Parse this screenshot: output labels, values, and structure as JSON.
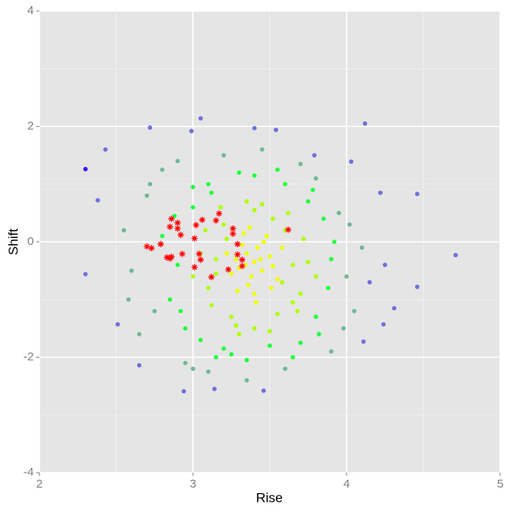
{
  "chart_data": {
    "type": "scatter",
    "x_label": "Rise",
    "y_label": "Shift",
    "xlim": [
      2,
      5
    ],
    "ylim": [
      -4,
      4
    ],
    "xticks": [
      2,
      3,
      4,
      5
    ],
    "yticks": [
      -4,
      -2,
      0,
      2,
      4
    ],
    "grid": true,
    "series": [
      {
        "color": "#eeff00",
        "marker": "dot",
        "x": [
          3.4,
          3.35,
          3.45,
          3.3,
          3.5,
          3.38,
          3.42,
          3.28,
          3.52,
          3.36,
          3.46,
          3.32,
          3.25,
          3.55,
          3.4,
          3.33,
          3.48,
          3.22,
          3.58,
          3.44,
          3.37,
          3.29,
          3.51,
          3.41,
          3.34
        ],
        "values": [
          -0.35,
          -0.2,
          -0.5,
          -0.45,
          -0.25,
          -0.6,
          -0.1,
          -0.3,
          -0.42,
          -0.75,
          0,
          -0.05,
          -0.55,
          -0.65,
          -0.9,
          0.15,
          0.1,
          -0.2,
          -0.1,
          -0.3,
          0.25,
          -0.85,
          -0.8,
          -1.05,
          -0.4
        ]
      },
      {
        "color": "#b0ff00",
        "marker": "dot",
        "x": [
          3.15,
          3.65,
          3.2,
          3.6,
          3.1,
          3.7,
          3.25,
          3.55,
          3.4,
          3.4,
          3.05,
          3.75,
          3.18,
          3.62,
          3.3,
          3.5,
          3.12,
          3.68,
          3.22,
          3.58,
          3.08,
          3.72,
          3.35,
          3.45,
          3.0,
          3.8,
          3.28,
          3.52,
          3.15,
          3.65
        ],
        "values": [
          -0.3,
          -0.4,
          0.3,
          0.2,
          -0.8,
          -0.9,
          -1.3,
          -1.25,
          0.55,
          -1.5,
          -0.2,
          -0.35,
          0.6,
          0.5,
          -1.6,
          -1.55,
          -1.1,
          -1.2,
          0.05,
          -0.7,
          0.2,
          0.05,
          0.7,
          0.65,
          -0.6,
          -0.6,
          -1.45,
          0.4,
          -0.55,
          -1.05
        ]
      },
      {
        "color": "#20ff40",
        "marker": "dot",
        "x": [
          2.9,
          3.9,
          3.0,
          3.85,
          2.85,
          3.8,
          2.95,
          3.1,
          3.6,
          3.2,
          3.5,
          3.05,
          3.75,
          2.8,
          3.88,
          3.3,
          3.4,
          3.15,
          3.7,
          2.88,
          3.92,
          3.25,
          3.55,
          3.0,
          3.82,
          2.92,
          3.65,
          3.35,
          3.12,
          3.78
        ],
        "values": [
          -0.4,
          -0.3,
          0.6,
          0.4,
          -1.0,
          -1.3,
          -1.5,
          1.0,
          1.0,
          -1.85,
          -1.8,
          -1.7,
          0.7,
          0.1,
          -0.8,
          1.2,
          1.15,
          -2.0,
          -1.75,
          0.45,
          0,
          -1.95,
          1.25,
          0.95,
          -1.6,
          -1.2,
          -2.0,
          -2.05,
          0.85,
          0.9
        ]
      },
      {
        "color": "#70b898",
        "marker": "dot",
        "x": [
          2.6,
          4.0,
          2.7,
          3.95,
          2.55,
          4.05,
          2.75,
          3.7,
          2.8,
          3.2,
          3.6,
          3.0,
          3.9,
          2.65,
          4.1,
          2.9,
          3.45,
          2.58,
          3.98,
          3.1,
          3.8,
          2.72,
          4.02,
          3.35,
          2.95
        ],
        "values": [
          -0.5,
          -0.6,
          0.8,
          0.5,
          0.2,
          -1.2,
          -1.2,
          1.35,
          1.25,
          1.5,
          -2.2,
          -2.2,
          -1.9,
          -1.6,
          -0.1,
          1.4,
          1.6,
          -1.0,
          -1.5,
          -2.25,
          1.1,
          1.0,
          0.3,
          -2.4,
          -2.1
        ]
      },
      {
        "color": "#7070d8",
        "marker": "dot",
        "x": [
          2.43,
          2.3,
          2.38,
          2.72,
          3.05,
          4.12,
          4.71,
          4.46,
          4.46,
          2.94,
          2.65,
          2.51,
          4.11,
          4.31,
          3.46,
          3.14,
          4.03,
          3.79,
          3.54,
          3.4,
          2.99,
          4.24,
          4.22,
          4.25,
          4.15
        ],
        "values": [
          1.6,
          -0.56,
          0.72,
          1.98,
          2.14,
          2.05,
          -0.23,
          0.83,
          -0.78,
          -2.59,
          -2.14,
          -1.43,
          -1.73,
          -1.15,
          -2.58,
          -2.55,
          1.39,
          1.5,
          1.94,
          1.97,
          1.92,
          -1.43,
          0.85,
          -0.4,
          -0.7
        ]
      },
      {
        "color": "#4400ff",
        "marker": "dot",
        "x": [
          2.3
        ],
        "values": [
          1.26
        ]
      },
      {
        "color": "#ff0000",
        "marker": "star",
        "x": [
          2.86,
          2.9,
          2.9,
          2.85,
          2.92,
          2.79,
          2.7,
          2.73,
          2.93,
          2.85,
          2.83,
          2.86,
          3.06,
          3.02,
          3.01,
          3.04,
          3.05,
          3.17,
          3.15,
          3.26,
          3.26,
          3.29,
          3.29,
          3.32,
          3.32,
          3.23,
          3.01,
          3.12,
          3.62
        ],
        "values": [
          0.4,
          0.33,
          0.23,
          0.26,
          0.12,
          -0.04,
          -0.08,
          -0.11,
          -0.21,
          -0.29,
          -0.27,
          -0.26,
          0.38,
          0.29,
          0.06,
          -0.21,
          -0.31,
          0.49,
          0.37,
          0.23,
          0.14,
          -0.04,
          -0.22,
          -0.31,
          -0.42,
          -0.48,
          -0.44,
          -0.61,
          0.21
        ]
      }
    ]
  }
}
